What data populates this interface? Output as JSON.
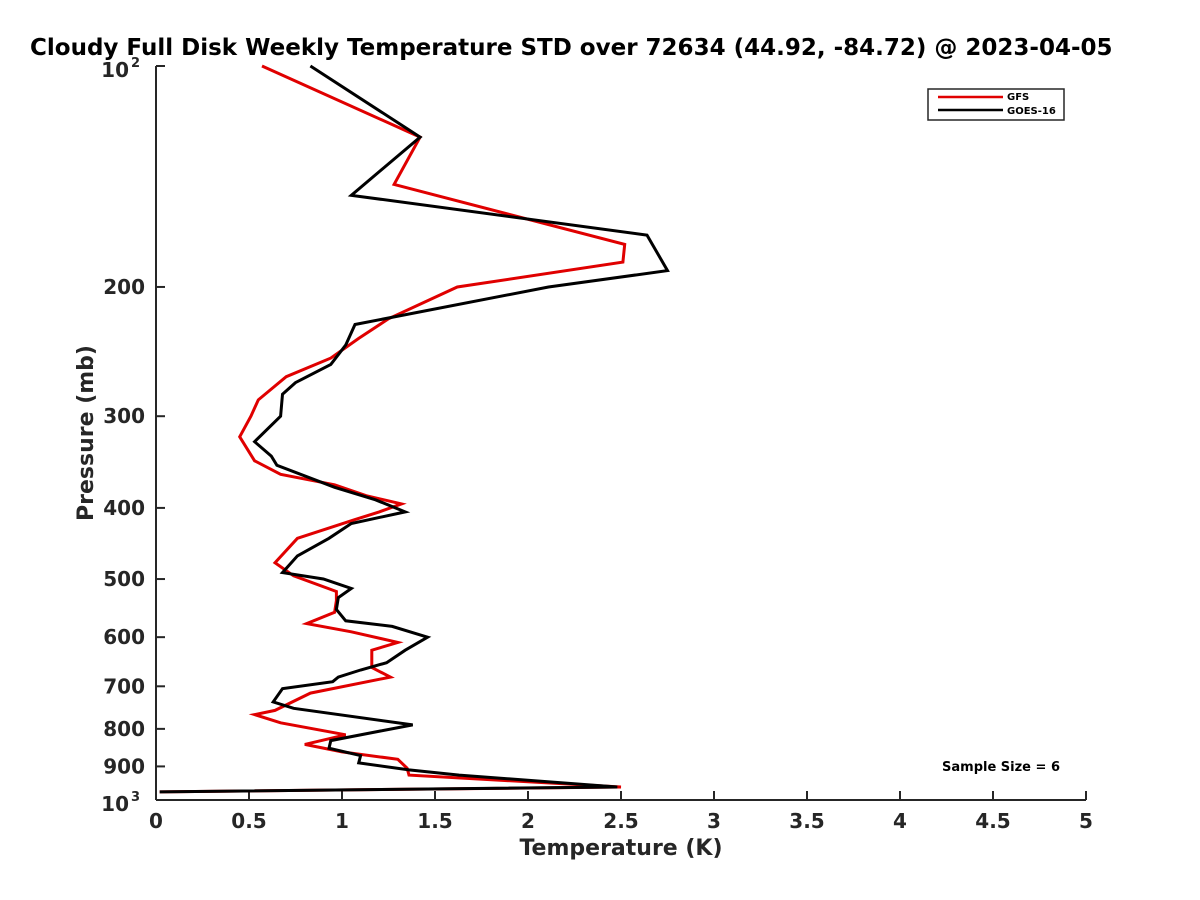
{
  "chart_data": {
    "type": "line",
    "title": "Cloudy Full Disk Weekly Temperature STD over 72634 (44.92, -84.72) @ 2023-04-05",
    "xlabel": "Temperature (K)",
    "ylabel": "Pressure (mb)",
    "xlim": [
      0,
      5
    ],
    "ylim": [
      100,
      1000
    ],
    "yscale": "log",
    "y_reversed": true,
    "grid": false,
    "legend_position": "top-right",
    "x_ticks": [
      0,
      0.5,
      1,
      1.5,
      2,
      2.5,
      3,
      3.5,
      4,
      4.5,
      5
    ],
    "x_tick_labels": [
      "0",
      "0.5",
      "1",
      "1.5",
      "2",
      "2.5",
      "3",
      "3.5",
      "4",
      "4.5",
      "5"
    ],
    "y_ticks": [
      100,
      200,
      300,
      400,
      500,
      600,
      700,
      800,
      900,
      1000
    ],
    "y_tick_labels": [
      {
        "base": "10",
        "exp": "2"
      },
      {
        "base": "200",
        "exp": ""
      },
      {
        "base": "300",
        "exp": ""
      },
      {
        "base": "400",
        "exp": ""
      },
      {
        "base": "500",
        "exp": ""
      },
      {
        "base": "600",
        "exp": ""
      },
      {
        "base": "700",
        "exp": ""
      },
      {
        "base": "800",
        "exp": ""
      },
      {
        "base": "900",
        "exp": ""
      },
      {
        "base": "10",
        "exp": "3"
      }
    ],
    "annotation": "Sample Size = 6",
    "series": [
      {
        "name": "GFS",
        "color": "#e00000",
        "x": [
          0.57,
          1.42,
          1.28,
          2.52,
          2.51,
          1.62,
          1.25,
          1.09,
          0.94,
          0.7,
          0.55,
          0.51,
          0.45,
          0.53,
          0.67,
          0.96,
          1.13,
          1.32,
          1.2,
          1.07,
          0.76,
          0.64,
          0.74,
          0.97,
          0.97,
          0.96,
          0.81,
          1.05,
          1.3,
          1.16,
          1.16,
          1.26,
          0.83,
          0.64,
          0.53,
          0.67,
          1.02,
          0.8,
          1.0,
          1.3,
          1.35,
          1.36,
          2.5,
          0.02
        ],
        "y": [
          100,
          125,
          145,
          175,
          185,
          200,
          221,
          235,
          250,
          265,
          285,
          300,
          320,
          345,
          360,
          372,
          385,
          395,
          405,
          415,
          440,
          475,
          495,
          520,
          535,
          555,
          575,
          590,
          610,
          625,
          660,
          680,
          715,
          755,
          765,
          785,
          815,
          840,
          860,
          880,
          905,
          925,
          960,
          975
        ]
      },
      {
        "name": "GOES-16",
        "color": "#000000",
        "x": [
          0.83,
          1.42,
          1.05,
          2.64,
          2.75,
          2.11,
          1.07,
          1.02,
          0.94,
          0.75,
          0.68,
          0.67,
          0.53,
          0.62,
          0.65,
          0.96,
          1.18,
          1.34,
          1.05,
          0.93,
          0.76,
          0.68,
          0.9,
          1.05,
          0.98,
          0.97,
          1.02,
          1.27,
          1.46,
          1.34,
          1.24,
          1.1,
          0.98,
          0.95,
          0.68,
          0.63,
          0.74,
          1.38,
          1.21,
          0.94,
          0.93,
          1.1,
          1.09,
          1.36,
          1.63,
          2.48,
          0.02
        ],
        "y": [
          100,
          125,
          150,
          170,
          190,
          200,
          225,
          240,
          255,
          270,
          280,
          300,
          325,
          340,
          350,
          375,
          390,
          405,
          420,
          440,
          465,
          490,
          500,
          515,
          530,
          550,
          570,
          580,
          600,
          625,
          650,
          665,
          680,
          690,
          705,
          735,
          750,
          790,
          805,
          830,
          850,
          870,
          890,
          910,
          925,
          960,
          975
        ]
      }
    ]
  }
}
